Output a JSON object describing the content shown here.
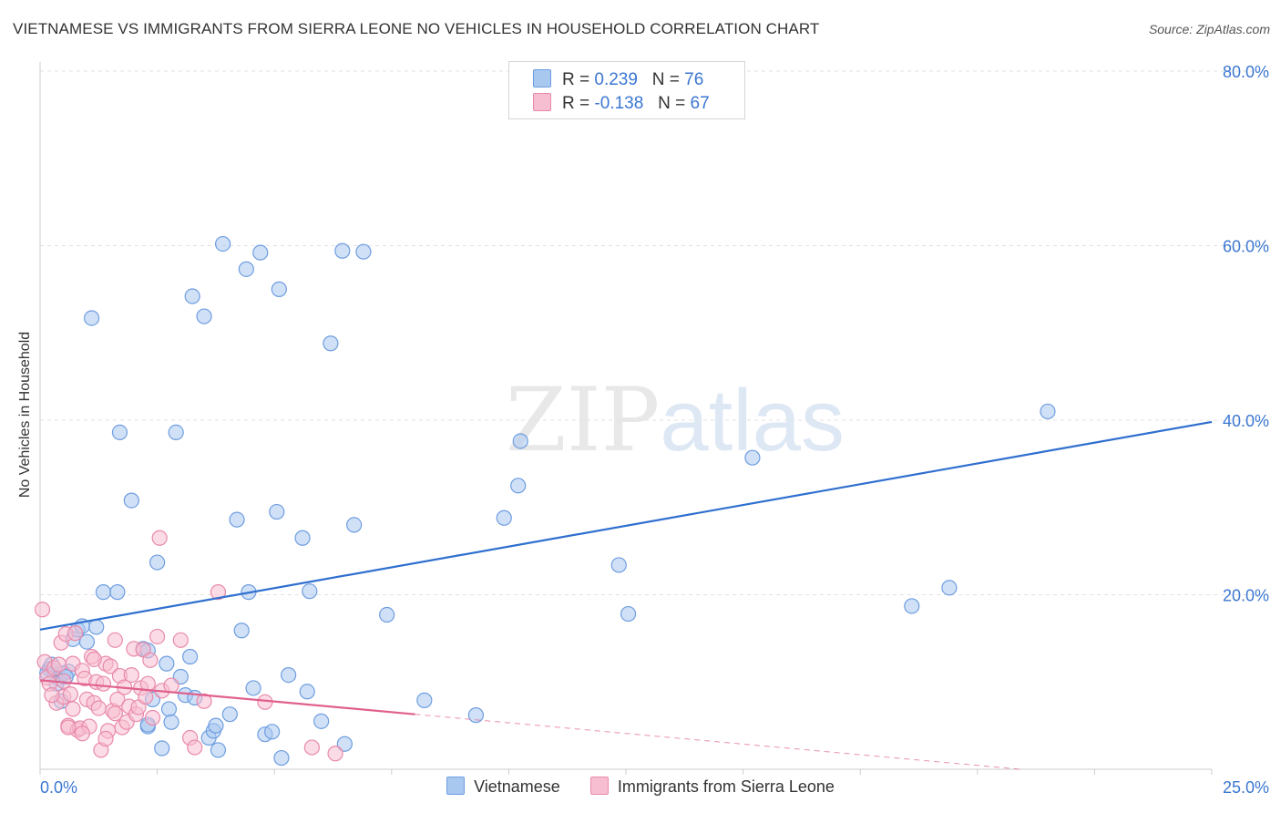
{
  "title": "VIETNAMESE VS IMMIGRANTS FROM SIERRA LEONE NO VEHICLES IN HOUSEHOLD CORRELATION CHART",
  "source": "Source: ZipAtlas.com",
  "watermark": {
    "zip": "ZIP",
    "atlas": "atlas"
  },
  "legend": [
    {
      "r_label": "R =",
      "r_value": "0.239",
      "n_label": "N =",
      "n_value": "76",
      "color": "#a9c8f0",
      "border": "#6e9de0"
    },
    {
      "r_label": "R =",
      "r_value": "-0.138",
      "n_label": "N =",
      "n_value": "67",
      "color": "#f7bdd0",
      "border": "#e98aab"
    }
  ],
  "chart_data": {
    "type": "scatter",
    "title": "VIETNAMESE VS IMMIGRANTS FROM SIERRA LEONE NO VEHICLES IN HOUSEHOLD CORRELATION CHART",
    "xlabel": "",
    "ylabel": "No Vehicles in Household",
    "xlim": [
      0,
      25
    ],
    "ylim": [
      0,
      80
    ],
    "x_tick_labels": [
      {
        "value": 0,
        "label": "0.0%"
      },
      {
        "value": 25,
        "label": "25.0%"
      }
    ],
    "y_tick_labels": [
      {
        "value": 20,
        "label": "20.0%"
      },
      {
        "value": 40,
        "label": "40.0%"
      },
      {
        "value": 60,
        "label": "60.0%"
      },
      {
        "value": 80,
        "label": "80.0%"
      }
    ],
    "grid": true,
    "legend_position": "top-center",
    "series": [
      {
        "name": "Vietnamese",
        "color": "#6e9de0",
        "fill": "#a9c8f0",
        "trend": {
          "x": [
            0,
            25
          ],
          "y": [
            16.0,
            39.8
          ],
          "style": "solid",
          "color": "#2f6fcf"
        },
        "points": [
          [
            0.2,
            11.5
          ],
          [
            0.3,
            10.8
          ],
          [
            0.4,
            10.4
          ],
          [
            0.5,
            11.0
          ],
          [
            0.25,
            12.0
          ],
          [
            0.35,
            9.8
          ],
          [
            0.6,
            11.2
          ],
          [
            0.45,
            7.8
          ],
          [
            0.7,
            14.9
          ],
          [
            0.8,
            16.0
          ],
          [
            0.9,
            16.4
          ],
          [
            1.0,
            14.6
          ],
          [
            1.2,
            16.3
          ],
          [
            1.1,
            51.7
          ],
          [
            1.35,
            20.3
          ],
          [
            1.65,
            20.3
          ],
          [
            1.7,
            38.6
          ],
          [
            1.95,
            30.8
          ],
          [
            2.2,
            13.8
          ],
          [
            2.3,
            13.6
          ],
          [
            2.3,
            4.9
          ],
          [
            2.3,
            5.1
          ],
          [
            2.4,
            8.0
          ],
          [
            2.5,
            23.7
          ],
          [
            2.6,
            2.4
          ],
          [
            2.7,
            12.1
          ],
          [
            2.75,
            6.9
          ],
          [
            2.8,
            5.4
          ],
          [
            2.9,
            38.6
          ],
          [
            3.0,
            10.6
          ],
          [
            3.1,
            8.5
          ],
          [
            3.2,
            12.9
          ],
          [
            3.25,
            54.2
          ],
          [
            3.3,
            8.2
          ],
          [
            3.5,
            51.9
          ],
          [
            3.6,
            3.6
          ],
          [
            3.7,
            4.4
          ],
          [
            3.75,
            5.0
          ],
          [
            3.8,
            2.2
          ],
          [
            3.9,
            60.2
          ],
          [
            4.05,
            6.3
          ],
          [
            4.2,
            28.6
          ],
          [
            4.3,
            15.9
          ],
          [
            4.4,
            57.3
          ],
          [
            4.45,
            20.3
          ],
          [
            4.55,
            9.3
          ],
          [
            4.7,
            59.2
          ],
          [
            4.8,
            4.0
          ],
          [
            4.95,
            4.3
          ],
          [
            5.05,
            29.5
          ],
          [
            5.1,
            55.0
          ],
          [
            5.15,
            1.3
          ],
          [
            5.3,
            10.8
          ],
          [
            5.6,
            26.5
          ],
          [
            5.7,
            8.9
          ],
          [
            5.75,
            20.4
          ],
          [
            6.0,
            5.5
          ],
          [
            6.2,
            48.8
          ],
          [
            6.45,
            59.4
          ],
          [
            6.5,
            2.9
          ],
          [
            6.7,
            28.0
          ],
          [
            6.9,
            59.3
          ],
          [
            7.4,
            17.7
          ],
          [
            8.2,
            7.9
          ],
          [
            9.3,
            6.2
          ],
          [
            9.9,
            28.8
          ],
          [
            10.2,
            32.5
          ],
          [
            10.25,
            37.6
          ],
          [
            12.35,
            23.4
          ],
          [
            12.55,
            17.8
          ],
          [
            15.2,
            35.7
          ],
          [
            18.6,
            18.7
          ],
          [
            19.4,
            20.8
          ],
          [
            21.5,
            41.0
          ],
          [
            0.15,
            11.0
          ],
          [
            0.55,
            10.6
          ]
        ]
      },
      {
        "name": "Immigrants from Sierra Leone",
        "color": "#e98aab",
        "fill": "#f7bdd0",
        "trend": {
          "x": [
            0,
            8.0
          ],
          "y": [
            10.2,
            6.3
          ],
          "style": "solid",
          "color": "#e0608e",
          "dash_extension": {
            "x": [
              8.0,
              25
            ],
            "y": [
              6.3,
              -2.0
            ]
          }
        },
        "points": [
          [
            0.05,
            18.3
          ],
          [
            0.1,
            12.3
          ],
          [
            0.15,
            10.5
          ],
          [
            0.2,
            9.8
          ],
          [
            0.3,
            11.6
          ],
          [
            0.35,
            7.6
          ],
          [
            0.4,
            12.0
          ],
          [
            0.45,
            14.5
          ],
          [
            0.5,
            8.3
          ],
          [
            0.55,
            15.5
          ],
          [
            0.6,
            5.0
          ],
          [
            0.65,
            8.6
          ],
          [
            0.7,
            12.1
          ],
          [
            0.75,
            15.6
          ],
          [
            0.8,
            4.5
          ],
          [
            0.85,
            4.7
          ],
          [
            0.9,
            11.3
          ],
          [
            0.95,
            10.4
          ],
          [
            1.0,
            8.0
          ],
          [
            1.05,
            4.9
          ],
          [
            1.1,
            12.9
          ],
          [
            1.15,
            7.6
          ],
          [
            1.2,
            10.0
          ],
          [
            1.25,
            7.0
          ],
          [
            1.3,
            2.2
          ],
          [
            1.35,
            9.8
          ],
          [
            1.4,
            12.1
          ],
          [
            1.45,
            4.4
          ],
          [
            1.5,
            11.8
          ],
          [
            1.55,
            6.7
          ],
          [
            1.6,
            14.8
          ],
          [
            1.65,
            8.0
          ],
          [
            1.7,
            10.7
          ],
          [
            1.75,
            4.8
          ],
          [
            1.8,
            9.4
          ],
          [
            1.85,
            5.4
          ],
          [
            1.9,
            7.2
          ],
          [
            2.0,
            13.8
          ],
          [
            2.05,
            6.3
          ],
          [
            2.1,
            7.1
          ],
          [
            2.15,
            9.3
          ],
          [
            2.2,
            13.7
          ],
          [
            2.3,
            9.8
          ],
          [
            2.4,
            5.9
          ],
          [
            2.5,
            15.2
          ],
          [
            2.55,
            26.5
          ],
          [
            2.6,
            9.0
          ],
          [
            3.0,
            14.8
          ],
          [
            3.2,
            3.6
          ],
          [
            3.3,
            2.5
          ],
          [
            3.5,
            7.8
          ],
          [
            3.8,
            20.3
          ],
          [
            4.8,
            7.7
          ],
          [
            5.8,
            2.5
          ],
          [
            6.3,
            1.8
          ],
          [
            0.25,
            8.5
          ],
          [
            0.7,
            6.9
          ],
          [
            0.9,
            4.1
          ],
          [
            1.15,
            12.6
          ],
          [
            1.6,
            6.4
          ],
          [
            1.95,
            10.8
          ],
          [
            2.35,
            12.5
          ],
          [
            2.8,
            9.6
          ],
          [
            0.5,
            10.1
          ],
          [
            1.4,
            3.5
          ],
          [
            0.6,
            4.8
          ],
          [
            2.25,
            8.3
          ]
        ]
      }
    ]
  },
  "bottom_legend": [
    {
      "label": "Vietnamese"
    },
    {
      "label": "Immigrants from Sierra Leone"
    }
  ]
}
